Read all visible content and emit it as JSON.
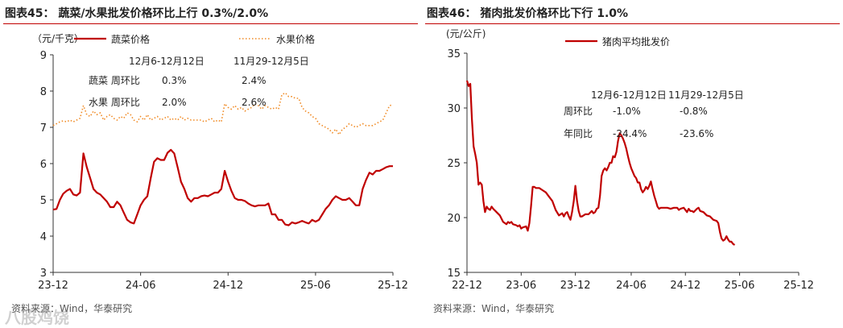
{
  "panels": [
    {
      "title": "图表45：  蔬菜/水果批发价格环比上行 0.3%/2.0%",
      "source": "资料来源：Wind，华泰研究"
    },
    {
      "title": "图表46：  猪肉批发价格环比下行 1.0%",
      "source": "资料来源：Wind，华泰研究"
    }
  ],
  "watermark": "八股鸡饶",
  "chart_data": [
    {
      "type": "line",
      "unit_label": "（元/千克）",
      "ylim": [
        3,
        9
      ],
      "yticks": [
        3,
        4,
        5,
        6,
        7,
        8,
        9
      ],
      "xlim": [
        0,
        101
      ],
      "xticks": [
        {
          "label": "23-12",
          "x": 0
        },
        {
          "label": "24-06",
          "x": 26
        },
        {
          "label": "24-12",
          "x": 52
        },
        {
          "label": "25-06",
          "x": 78
        },
        {
          "label": "25-12",
          "x": 101
        }
      ],
      "series": [
        {
          "name": "蔬菜价格",
          "color": "#c00000",
          "style": "solid",
          "values": [
            4.73,
            4.75,
            5.0,
            5.17,
            5.25,
            5.3,
            5.15,
            5.12,
            5.2,
            6.28,
            5.9,
            5.6,
            5.3,
            5.2,
            5.15,
            5.05,
            4.95,
            4.8,
            4.8,
            4.95,
            4.85,
            4.65,
            4.45,
            4.38,
            4.35,
            4.6,
            4.85,
            5.0,
            5.1,
            5.6,
            6.05,
            6.15,
            6.1,
            6.1,
            6.3,
            6.38,
            6.28,
            5.9,
            5.5,
            5.3,
            5.05,
            4.95,
            5.05,
            5.05,
            5.1,
            5.12,
            5.1,
            5.15,
            5.2,
            5.2,
            5.3,
            5.8,
            5.5,
            5.25,
            5.05,
            5.0,
            5.0,
            4.97,
            4.9,
            4.85,
            4.82,
            4.85,
            4.85,
            4.85,
            4.9,
            4.6,
            4.6,
            4.45,
            4.45,
            4.32,
            4.3,
            4.38,
            4.35,
            4.38,
            4.42,
            4.38,
            4.35,
            4.45,
            4.4,
            4.45,
            4.6,
            4.75,
            4.85,
            5.0,
            5.1,
            5.05,
            5.0,
            5.0,
            5.05,
            4.95,
            4.85,
            4.85,
            5.3,
            5.55,
            5.75,
            5.7,
            5.8,
            5.8,
            5.85,
            5.9,
            5.93,
            5.93
          ]
        },
        {
          "name": "水果价格",
          "color": "#f08a24",
          "style": "dotted",
          "values": [
            7.05,
            7.1,
            7.15,
            7.18,
            7.15,
            7.2,
            7.15,
            7.2,
            7.25,
            7.6,
            7.35,
            7.3,
            7.45,
            7.35,
            7.4,
            7.2,
            7.3,
            7.35,
            7.25,
            7.2,
            7.3,
            7.25,
            7.4,
            7.35,
            7.2,
            7.15,
            7.3,
            7.2,
            7.35,
            7.2,
            7.25,
            7.3,
            7.2,
            7.25,
            7.3,
            7.2,
            7.25,
            7.2,
            7.3,
            7.2,
            7.25,
            7.2,
            7.2,
            7.2,
            7.2,
            7.15,
            7.2,
            7.25,
            7.15,
            7.2,
            7.15,
            7.65,
            7.55,
            7.5,
            7.6,
            7.5,
            7.55,
            7.45,
            7.5,
            7.55,
            7.65,
            7.6,
            7.5,
            7.6,
            7.55,
            7.5,
            7.55,
            7.5,
            7.9,
            7.95,
            7.85,
            7.85,
            7.8,
            7.8,
            7.55,
            7.45,
            7.4,
            7.3,
            7.25,
            7.1,
            7.05,
            7.0,
            6.95,
            6.85,
            6.95,
            6.8,
            6.95,
            7.0,
            7.1,
            7.05,
            7.0,
            7.05,
            7.1,
            7.05,
            7.05,
            7.05,
            7.1,
            7.15,
            7.2,
            7.4,
            7.6,
            7.62
          ]
        }
      ],
      "legend": [
        "蔬菜价格",
        "水果价格"
      ],
      "table": {
        "header": [
          "12月6-12月12日",
          "11月29-12月5日"
        ],
        "rows": [
          {
            "label": "蔬菜  周环比",
            "values": [
              "0.3%",
              "2.4%"
            ]
          },
          {
            "label": "水果  周环比",
            "values": [
              "2.0%",
              "2.6%"
            ]
          }
        ]
      }
    },
    {
      "type": "line",
      "unit_label": "(元/公斤)",
      "ylim": [
        15,
        35
      ],
      "yticks": [
        15,
        20,
        25,
        30,
        35
      ],
      "xlim": [
        0,
        101
      ],
      "xticks": [
        {
          "label": "22-12",
          "x": 0
        },
        {
          "label": "23-06",
          "x": 16.5
        },
        {
          "label": "23-12",
          "x": 33
        },
        {
          "label": "24-06",
          "x": 50
        },
        {
          "label": "24-12",
          "x": 66.5
        },
        {
          "label": "25-06",
          "x": 83
        },
        {
          "label": "25-12",
          "x": 101
        }
      ],
      "series": [
        {
          "name": "猪肉平均批发价",
          "color": "#c00000",
          "style": "solid",
          "points": [
            [
              0,
              32.5
            ],
            [
              0.5,
              32
            ],
            [
              1,
              32.2
            ],
            [
              1.5,
              29
            ],
            [
              2,
              26.5
            ],
            [
              2.5,
              25.8
            ],
            [
              3,
              25
            ],
            [
              3.5,
              23
            ],
            [
              4,
              23.2
            ],
            [
              4.5,
              23
            ],
            [
              5,
              21.5
            ],
            [
              5.5,
              20.5
            ],
            [
              6,
              21
            ],
            [
              6.5,
              20.8
            ],
            [
              7,
              20.7
            ],
            [
              7.5,
              21
            ],
            [
              8,
              20.8
            ],
            [
              9,
              20.5
            ],
            [
              10,
              20.2
            ],
            [
              11,
              19.6
            ],
            [
              12,
              19.4
            ],
            [
              12.5,
              19.6
            ],
            [
              13,
              19.5
            ],
            [
              13.5,
              19.6
            ],
            [
              14,
              19.4
            ],
            [
              15,
              19.3
            ],
            [
              15.5,
              19.2
            ],
            [
              16,
              19.3
            ],
            [
              16.5,
              19
            ],
            [
              17,
              19.1
            ],
            [
              18,
              19.2
            ],
            [
              18.5,
              18.8
            ],
            [
              19,
              19.5
            ],
            [
              19.5,
              21
            ],
            [
              20,
              22.8
            ],
            [
              20.5,
              22.8
            ],
            [
              21,
              22.7
            ],
            [
              22,
              22.7
            ],
            [
              23,
              22.5
            ],
            [
              24,
              22.3
            ],
            [
              25,
              21.9
            ],
            [
              26,
              21.5
            ],
            [
              27,
              20.7
            ],
            [
              28,
              20.2
            ],
            [
              29,
              20.4
            ],
            [
              29.5,
              20.1
            ],
            [
              30,
              20.4
            ],
            [
              30.5,
              20.5
            ],
            [
              31,
              20.1
            ],
            [
              31.5,
              19.8
            ],
            [
              32,
              20.5
            ],
            [
              32.5,
              21.5
            ],
            [
              33,
              22.9
            ],
            [
              33.5,
              21.5
            ],
            [
              34,
              20.6
            ],
            [
              34.5,
              20.1
            ],
            [
              35,
              20.1
            ],
            [
              36,
              20.3
            ],
            [
              37,
              20.3
            ],
            [
              38,
              20.6
            ],
            [
              38.5,
              20.4
            ],
            [
              39,
              20.5
            ],
            [
              39.5,
              20.8
            ],
            [
              40,
              20.9
            ],
            [
              40.5,
              22
            ],
            [
              41,
              23.8
            ],
            [
              41.5,
              24.3
            ],
            [
              42,
              24.5
            ],
            [
              42.5,
              24.3
            ],
            [
              43,
              24.6
            ],
            [
              43.5,
              25
            ],
            [
              44,
              25
            ],
            [
              44.5,
              25.6
            ],
            [
              45,
              25.5
            ],
            [
              45.5,
              26
            ],
            [
              46,
              27
            ],
            [
              46.5,
              27.7
            ],
            [
              47,
              27.5
            ],
            [
              47.5,
              27.2
            ],
            [
              48,
              26.8
            ],
            [
              48.5,
              26.3
            ],
            [
              49,
              25.6
            ],
            [
              49.5,
              25
            ],
            [
              50,
              24.5
            ],
            [
              51,
              23.8
            ],
            [
              51.5,
              23.6
            ],
            [
              52,
              23.2
            ],
            [
              52.5,
              23.2
            ],
            [
              53,
              22.6
            ],
            [
              53.5,
              22.3
            ],
            [
              54,
              22.5
            ],
            [
              54.5,
              22.8
            ],
            [
              55,
              22.6
            ],
            [
              55.5,
              22.9
            ],
            [
              56,
              23.3
            ],
            [
              56.5,
              22.6
            ],
            [
              57,
              22
            ],
            [
              57.5,
              21.5
            ],
            [
              58,
              21
            ],
            [
              58.5,
              20.8
            ],
            [
              59,
              20.9
            ],
            [
              60,
              20.9
            ],
            [
              61,
              20.9
            ],
            [
              62,
              20.8
            ],
            [
              63,
              20.9
            ],
            [
              64,
              20.9
            ],
            [
              64.5,
              20.7
            ],
            [
              65,
              20.8
            ],
            [
              66,
              20.9
            ],
            [
              67,
              20.5
            ],
            [
              67.5,
              20.8
            ],
            [
              68,
              20.6
            ],
            [
              68.5,
              20.6
            ],
            [
              69,
              20.5
            ],
            [
              70,
              20.8
            ],
            [
              70.5,
              20.9
            ],
            [
              71,
              20.6
            ],
            [
              72,
              20.5
            ],
            [
              73,
              20.2
            ],
            [
              74,
              20.1
            ],
            [
              75,
              19.8
            ],
            [
              76,
              19.7
            ],
            [
              76.5,
              19.5
            ],
            [
              77,
              18.7
            ],
            [
              77.5,
              18.1
            ],
            [
              78,
              17.9
            ],
            [
              78.5,
              18
            ],
            [
              79,
              18.3
            ],
            [
              79.5,
              18
            ],
            [
              80,
              17.8
            ],
            [
              80.5,
              17.8
            ],
            [
              81,
              17.6
            ],
            [
              81.5,
              17.5
            ]
          ]
        }
      ],
      "legend": [
        "猪肉平均批发价"
      ],
      "table": {
        "header": [
          "12月6-12月12日",
          "11月29-12月5日"
        ],
        "rows": [
          {
            "label": "周环比",
            "values": [
              "-1.0%",
              "-0.8%"
            ]
          },
          {
            "label": "年同比",
            "values": [
              "-24.4%",
              "-23.6%"
            ]
          }
        ]
      }
    }
  ]
}
